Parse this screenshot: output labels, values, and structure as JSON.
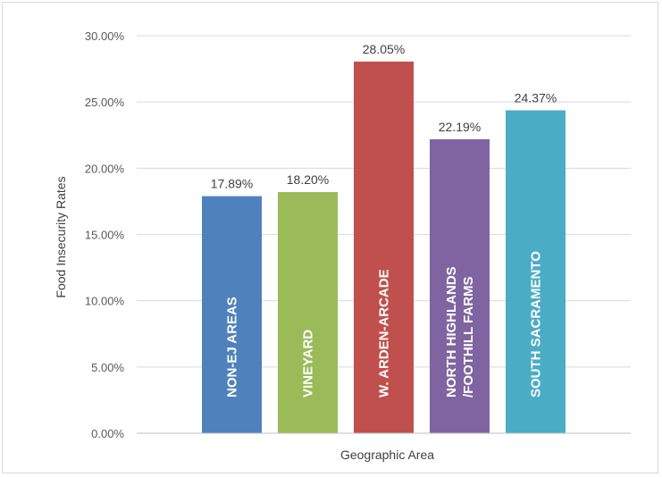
{
  "chart_data": {
    "type": "bar",
    "categories": [
      "NON-EJ AREAS",
      "VINEYARD",
      "W. ARDEN-ARCADE",
      "NORTH HIGHLANDS /FOOTHILL FARMS",
      "SOUTH SACRAMENTO"
    ],
    "category_lines": [
      [
        "NON-EJ AREAS"
      ],
      [
        "VINEYARD"
      ],
      [
        "W. ARDEN-ARCADE"
      ],
      [
        "NORTH  HIGHLANDS",
        "/FOOTHILL FARMS"
      ],
      [
        "SOUTH SACRAMENTO"
      ]
    ],
    "values": [
      17.89,
      18.2,
      28.05,
      22.19,
      24.37
    ],
    "data_labels": [
      "17.89%",
      "18.20%",
      "28.05%",
      "22.19%",
      "24.37%"
    ],
    "colors": [
      "#4f81bd",
      "#9bbb59",
      "#c0504d",
      "#8064a2",
      "#4bacc6"
    ],
    "xlabel": "Geographic Area",
    "ylabel": "Food Insecurity Rates",
    "ylim": [
      0,
      30
    ],
    "yticks": [
      0,
      5,
      10,
      15,
      20,
      25,
      30
    ],
    "ytick_labels": [
      "0.00%",
      "5.00%",
      "10.00%",
      "15.00%",
      "20.00%",
      "25.00%",
      "30.00%"
    ],
    "grid": true,
    "legend": "none"
  }
}
